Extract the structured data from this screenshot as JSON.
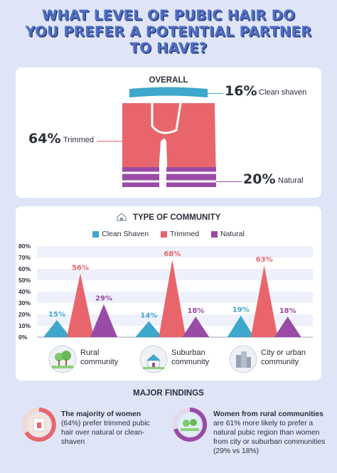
{
  "title_lines": [
    "WHAT LEVEL OF PUBIC HAIR DO",
    "YOU PREFER A POTENTIAL PARTNER",
    "TO HAVE?"
  ],
  "overall": {
    "heading": "OVERALL",
    "items": [
      {
        "pct": "16%",
        "label": "Clean shaven",
        "color": "#3ea7cc"
      },
      {
        "pct": "64%",
        "label": "Trimmed",
        "color": "#e8666b"
      },
      {
        "pct": "20%",
        "label": "Natural",
        "color": "#9a4ba6"
      }
    ]
  },
  "community": {
    "heading": "TYPE OF COMMUNITY",
    "icon": "house-icon",
    "legend": [
      "Clean Shaven",
      "Trimmed",
      "Natural"
    ],
    "groups": [
      {
        "name": "Rural community",
        "line1": "Rural",
        "line2": "community",
        "icon": "trees-icon"
      },
      {
        "name": "Suburban community",
        "line1": "Suburban",
        "line2": "community",
        "icon": "house-icon"
      },
      {
        "name": "City or urban community",
        "line1": "City or urban",
        "line2": "community",
        "icon": "buildings-icon"
      }
    ]
  },
  "chart_data": {
    "type": "bar",
    "title": "TYPE OF COMMUNITY",
    "categories": [
      "Rural community",
      "Suburban community",
      "City or urban community"
    ],
    "series": [
      {
        "name": "Clean Shaven",
        "values": [
          15,
          14,
          19
        ],
        "labels": [
          "15%",
          "14%",
          "19%"
        ],
        "color": "#3ea7cc"
      },
      {
        "name": "Trimmed",
        "values": [
          56,
          68,
          63
        ],
        "labels": [
          "56%",
          "68%",
          "63%"
        ],
        "color": "#e8666b"
      },
      {
        "name": "Natural",
        "values": [
          29,
          18,
          18
        ],
        "labels": [
          "29%",
          "18%",
          "18%"
        ],
        "color": "#9a4ba6"
      }
    ],
    "yticks": [
      "0%",
      "10%",
      "20%",
      "30%",
      "40%",
      "50%",
      "60%",
      "70%",
      "80%"
    ],
    "ylim": [
      0,
      80
    ],
    "legend_position": "top",
    "grid": "horizontal bands"
  },
  "findings": {
    "heading": "MAJOR FINDINGS",
    "f1_bold": "The majority of women",
    "f1_text": "(64%) prefer trimmed pubic hair over natural or clean-shaven",
    "f2_bold": "Women from rural communities",
    "f2_text": "are 61% more likely to prefer a natural pubic region than women from city or suburban communities (29% vs 18%)"
  }
}
